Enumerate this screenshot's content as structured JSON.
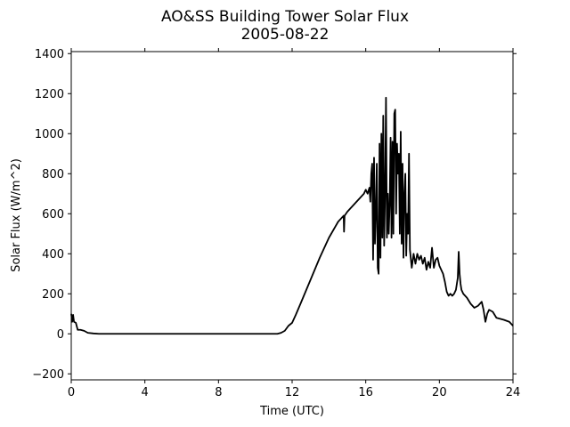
{
  "chart_data": {
    "type": "line",
    "title": "AO&SS Building Tower Solar Flux",
    "subtitle": "2005-08-22",
    "xlabel": "Time (UTC)",
    "ylabel": "Solar Flux (W/m^2)",
    "xlim": [
      0,
      24
    ],
    "ylim": [
      -230,
      1410
    ],
    "xticks": [
      0,
      4,
      8,
      12,
      16,
      20,
      24
    ],
    "yticks": [
      -200,
      0,
      200,
      400,
      600,
      800,
      1000,
      1200,
      1400
    ],
    "grid": false,
    "line_color": "#000000",
    "series": [
      {
        "x": [
          0.0,
          0.05,
          0.1,
          0.15,
          0.25,
          0.35,
          0.5,
          0.7,
          0.9,
          1.2,
          1.5,
          2,
          4,
          6,
          8,
          10,
          10.8,
          11.2,
          11.4,
          11.6,
          11.8,
          12.0,
          12.2,
          12.5,
          13,
          13.5,
          14,
          14.5,
          14.8,
          14.82,
          14.85,
          15,
          15.5,
          15.9,
          16.0,
          16.1,
          16.2,
          16.25,
          16.3,
          16.35,
          16.4,
          16.45,
          16.5,
          16.55,
          16.6,
          16.65,
          16.7,
          16.75,
          16.8,
          16.85,
          16.9,
          16.95,
          17.0,
          17.05,
          17.1,
          17.15,
          17.2,
          17.25,
          17.3,
          17.35,
          17.4,
          17.45,
          17.5,
          17.55,
          17.6,
          17.65,
          17.7,
          17.75,
          17.8,
          17.85,
          17.9,
          17.95,
          18.0,
          18.05,
          18.1,
          18.15,
          18.2,
          18.25,
          18.3,
          18.35,
          18.4,
          18.5,
          18.6,
          18.7,
          18.8,
          18.9,
          19.0,
          19.1,
          19.2,
          19.3,
          19.4,
          19.5,
          19.6,
          19.7,
          19.8,
          19.9,
          20.0,
          20.1,
          20.2,
          20.3,
          20.4,
          20.5,
          20.6,
          20.7,
          20.8,
          20.9,
          21.0,
          21.05,
          21.1,
          21.15,
          21.2,
          21.3,
          21.5,
          21.7,
          21.9,
          22.1,
          22.3,
          22.4,
          22.5,
          22.55,
          22.6,
          22.7,
          22.9,
          23.1,
          23.5,
          23.8,
          24.0
        ],
        "y": [
          100,
          60,
          95,
          60,
          55,
          20,
          20,
          15,
          5,
          2,
          0,
          0,
          0,
          0,
          0,
          0,
          0,
          0,
          5,
          15,
          40,
          55,
          95,
          160,
          270,
          380,
          480,
          560,
          590,
          510,
          590,
          610,
          660,
          700,
          720,
          700,
          730,
          660,
          800,
          850,
          370,
          880,
          450,
          600,
          850,
          330,
          300,
          950,
          380,
          1000,
          480,
          1090,
          440,
          700,
          1180,
          480,
          700,
          500,
          650,
          980,
          480,
          960,
          500,
          1100,
          1120,
          600,
          950,
          800,
          900,
          500,
          1010,
          450,
          850,
          380,
          700,
          800,
          390,
          600,
          500,
          900,
          420,
          330,
          400,
          350,
          400,
          370,
          390,
          350,
          380,
          320,
          360,
          330,
          430,
          330,
          370,
          380,
          340,
          320,
          300,
          260,
          210,
          190,
          200,
          190,
          200,
          220,
          280,
          410,
          300,
          250,
          220,
          200,
          180,
          150,
          130,
          140,
          160,
          120,
          60,
          80,
          100,
          120,
          110,
          80,
          70,
          60,
          40
        ]
      }
    ]
  }
}
